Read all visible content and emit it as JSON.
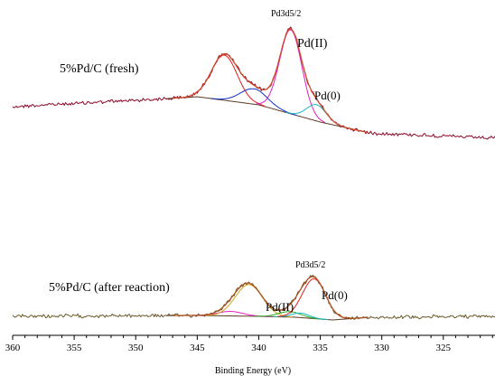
{
  "chart_data": {
    "type": "line",
    "xlabel": "Binding Energy (eV)",
    "ylabel": "",
    "xlim": [
      360,
      320.8
    ],
    "x_reversed": true,
    "x_ticks": [
      360,
      355,
      350,
      345,
      340,
      335,
      330,
      325
    ],
    "grid": false,
    "legend": "none",
    "panels": [
      {
        "name": "5%Pd/C (fresh)",
        "label": "5%Pd/C (fresh)",
        "peak_label": "Pd3d5/2",
        "component_labels": [
          "Pd(II)",
          "Pd(0)"
        ],
        "background": {
          "x": [
            360,
            346,
            345,
            340,
            335,
            331,
            320.8
          ],
          "y": [
            118,
            108,
            107,
            116,
            135,
            147,
            153
          ]
        },
        "components": [
          {
            "color": "#e02020",
            "center": 342.8,
            "sigma": 1.05,
            "height": 50
          },
          {
            "color": "#1530c8",
            "center": 340.4,
            "sigma": 1.1,
            "height": 17
          },
          {
            "color": "#e020c0",
            "center": 337.4,
            "sigma": 0.9,
            "height": 93
          },
          {
            "color": "#18b8c0",
            "center": 335.3,
            "sigma": 0.8,
            "height": 18
          }
        ],
        "noise_color": "#8b0a2a",
        "envelope_color": "#d04a28"
      },
      {
        "name": "5%Pd/C (after reaction)",
        "label": "5%Pd/C (after reaction)",
        "peak_label": "Pd3d5/2",
        "component_labels": [
          "Pd(II)",
          "Pd(0)"
        ],
        "background": {
          "x": [
            360,
            346,
            345,
            340,
            337,
            334,
            331,
            320.8
          ],
          "y": [
            350,
            349,
            349,
            350,
            351,
            354,
            351,
            350
          ]
        },
        "components": [
          {
            "color": "#e020c0",
            "center": 342.3,
            "sigma": 1.0,
            "height": 5
          },
          {
            "color": "#c8a820",
            "center": 340.8,
            "sigma": 1.1,
            "height": 35
          },
          {
            "color": "#2cb020",
            "center": 337.5,
            "sigma": 0.9,
            "height": 6
          },
          {
            "color": "#18b8c0",
            "center": 336.6,
            "sigma": 0.7,
            "height": 5
          },
          {
            "color": "#e02020",
            "center": 335.5,
            "sigma": 0.95,
            "height": 44
          }
        ],
        "noise_color": "#6b5a2a",
        "envelope_color": "#b05020"
      }
    ]
  }
}
